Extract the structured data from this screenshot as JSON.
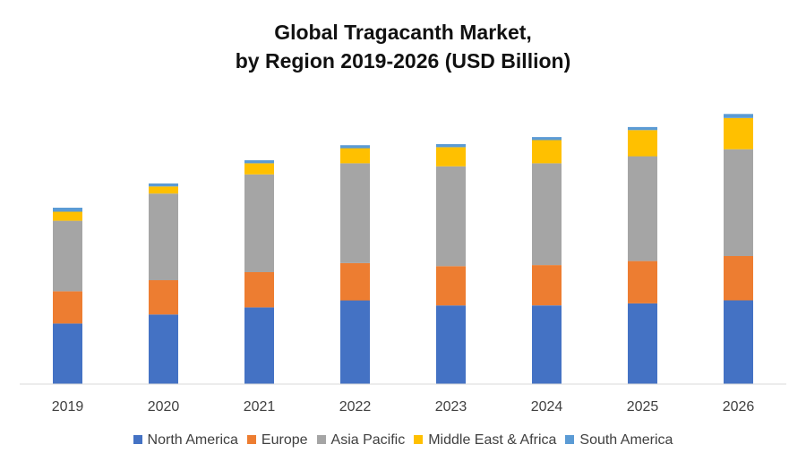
{
  "title_line1": "Global Tragacanth Market,",
  "title_line2": "by Region 2019-2026 (USD Billion)",
  "chart_data": {
    "type": "bar",
    "stacked": true,
    "categories": [
      "2019",
      "2020",
      "2021",
      "2022",
      "2023",
      "2024",
      "2025",
      "2026"
    ],
    "series": [
      {
        "name": "North America",
        "color": "#4472C4",
        "values": [
          0.6,
          0.69,
          0.76,
          0.83,
          0.78,
          0.78,
          0.8,
          0.83
        ]
      },
      {
        "name": "Europe",
        "color": "#ED7D31",
        "values": [
          0.32,
          0.34,
          0.35,
          0.37,
          0.39,
          0.4,
          0.42,
          0.44
        ]
      },
      {
        "name": "Asia Pacific",
        "color": "#A5A5A5",
        "values": [
          0.7,
          0.86,
          0.97,
          0.99,
          0.99,
          1.01,
          1.04,
          1.06
        ]
      },
      {
        "name": "Middle East & Africa",
        "color": "#FFC000",
        "values": [
          0.09,
          0.07,
          0.11,
          0.15,
          0.19,
          0.23,
          0.26,
          0.31
        ]
      },
      {
        "name": "South America",
        "color": "#5B9BD5",
        "values": [
          0.04,
          0.03,
          0.03,
          0.03,
          0.03,
          0.03,
          0.03,
          0.04
        ]
      }
    ],
    "ylim": [
      0,
      2.7
    ],
    "grid": false,
    "legend_position": "bottom",
    "xlabel": "",
    "ylabel": ""
  }
}
